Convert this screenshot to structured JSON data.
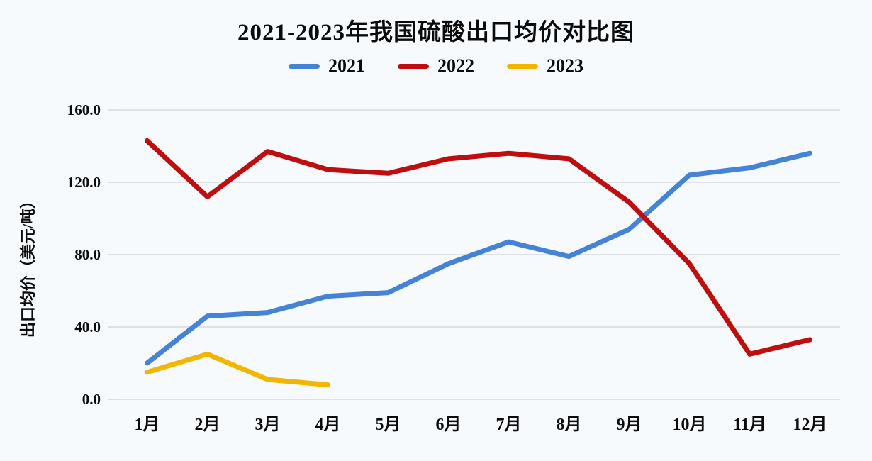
{
  "page": {
    "background": "#f7fafd",
    "gridline_color": "#d6dade",
    "text_color": "#0b0b0b"
  },
  "chart_data": {
    "type": "line",
    "title": "2021-2023年我国硫酸出口均价对比图",
    "ylabel": "出口均价（美元/吨）",
    "xlabel": "",
    "categories": [
      "1月",
      "2月",
      "3月",
      "4月",
      "5月",
      "6月",
      "7月",
      "8月",
      "9月",
      "10月",
      "11月",
      "12月"
    ],
    "series": [
      {
        "name": "2021",
        "color": "#4583d6",
        "values": [
          20,
          46,
          48,
          57,
          59,
          75,
          87,
          79,
          94,
          124,
          128,
          136
        ]
      },
      {
        "name": "2022",
        "color": "#c00d0d",
        "values": [
          143,
          112,
          137,
          127,
          125,
          133,
          136,
          133,
          109,
          75,
          25,
          33
        ]
      },
      {
        "name": "2023",
        "color": "#f2b600",
        "values": [
          15,
          25,
          11,
          8
        ]
      }
    ],
    "ylim": [
      0,
      160
    ],
    "ytick_step": 40,
    "ytick_labels": [
      "0.0",
      "40.0",
      "80.0",
      "120.0",
      "160.0"
    ],
    "grid": "horizontal",
    "legend_position": "top"
  }
}
